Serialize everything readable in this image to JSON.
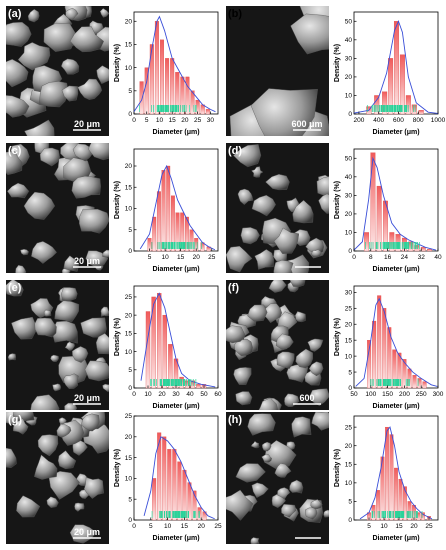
{
  "colors": {
    "bar_top": "#f05a5a",
    "bar_bottom": "#fde9e9",
    "bar_edge": "#d94040",
    "fit_line": "#3a4fd8",
    "rug": "#2bd39a",
    "sem_bg": "#161616",
    "particle": "#9a9a9a"
  },
  "panels": [
    {
      "label": "(a)",
      "scale_bar": "20 μm"
    },
    {
      "label": "(b)",
      "scale_bar": "600 μm"
    },
    {
      "label": "(c)",
      "scale_bar": "20 μm"
    },
    {
      "label": "(d)",
      "scale_bar": ""
    },
    {
      "label": "(e)",
      "scale_bar": "20 μm"
    },
    {
      "label": "(f)",
      "scale_bar": "600"
    },
    {
      "label": "(g)",
      "scale_bar": "20 μm"
    },
    {
      "label": "(h)",
      "scale_bar": ""
    }
  ],
  "chart_data": [
    {
      "type": "bar",
      "panel": "(a)",
      "xlabel": "Diameter (μm)",
      "ylabel": "Density (%)",
      "xlim": [
        0,
        33
      ],
      "ylim": [
        0,
        22
      ],
      "xticks": [
        0,
        5,
        10,
        15,
        20,
        25,
        30
      ],
      "yticks": [
        0,
        5,
        10,
        15,
        20
      ],
      "x": [
        3,
        5,
        7,
        9,
        11,
        13,
        15,
        17,
        19,
        21,
        23,
        25,
        27,
        29
      ],
      "values": [
        7,
        10,
        15,
        20,
        16,
        12,
        12,
        9,
        8,
        8,
        5,
        3,
        2,
        1
      ],
      "fit": [
        [
          0,
          0.5
        ],
        [
          3,
          3
        ],
        [
          5,
          7
        ],
        [
          7,
          14
        ],
        [
          9,
          20
        ],
        [
          10,
          21
        ],
        [
          12,
          18
        ],
        [
          15,
          12
        ],
        [
          18,
          9
        ],
        [
          21,
          6
        ],
        [
          24,
          4
        ],
        [
          27,
          2
        ],
        [
          30,
          1
        ],
        [
          32,
          0.5
        ]
      ]
    },
    {
      "type": "bar",
      "panel": "(b)",
      "xlabel": "Diameter (μm)",
      "ylabel": "Density (%)",
      "xlim": [
        150,
        1000
      ],
      "ylim": [
        0,
        55
      ],
      "xticks": [
        200,
        400,
        600,
        800,
        1000
      ],
      "yticks": [
        0,
        10,
        20,
        30,
        40,
        50
      ],
      "x": [
        300,
        380,
        460,
        520,
        580,
        640,
        700,
        760,
        830
      ],
      "values": [
        4,
        10,
        12,
        30,
        50,
        32,
        10,
        5,
        2
      ],
      "fit": [
        [
          150,
          0.5
        ],
        [
          300,
          2
        ],
        [
          400,
          9
        ],
        [
          480,
          22
        ],
        [
          560,
          45
        ],
        [
          600,
          50
        ],
        [
          640,
          44
        ],
        [
          700,
          20
        ],
        [
          780,
          6
        ],
        [
          900,
          1
        ],
        [
          1000,
          0.3
        ]
      ]
    },
    {
      "type": "bar",
      "panel": "(c)",
      "xlabel": "Diameter (μm)",
      "ylabel": "Density (%)",
      "xlim": [
        0,
        27
      ],
      "ylim": [
        0,
        24
      ],
      "xticks": [
        5,
        10,
        15,
        20,
        25
      ],
      "yticks": [
        0,
        5,
        10,
        15,
        20
      ],
      "x": [
        5,
        6.5,
        8,
        9.5,
        11,
        12.5,
        14,
        15.5,
        17,
        18.5,
        20,
        22,
        24
      ],
      "values": [
        3,
        8,
        14,
        19,
        20,
        13,
        9,
        9,
        8,
        5,
        3,
        2,
        1
      ],
      "fit": [
        [
          2,
          0.5
        ],
        [
          5,
          4
        ],
        [
          7,
          11
        ],
        [
          9,
          18
        ],
        [
          10.5,
          20
        ],
        [
          12,
          17
        ],
        [
          14,
          12
        ],
        [
          16,
          9
        ],
        [
          18,
          6
        ],
        [
          20,
          4
        ],
        [
          22,
          2
        ],
        [
          24,
          1
        ],
        [
          26,
          0.3
        ]
      ]
    },
    {
      "type": "bar",
      "panel": "(d)",
      "xlabel": "Diameter (μm)",
      "ylabel": "Density (%)",
      "xlim": [
        0,
        40
      ],
      "ylim": [
        0,
        55
      ],
      "xticks": [
        0,
        8,
        16,
        24,
        32,
        40
      ],
      "yticks": [
        0,
        10,
        20,
        30,
        40,
        50
      ],
      "x": [
        6,
        9,
        12,
        15,
        18,
        21,
        24,
        27,
        30,
        33,
        36
      ],
      "values": [
        10,
        53,
        35,
        27,
        10,
        9,
        7,
        5,
        3,
        2,
        1
      ],
      "fit": [
        [
          0,
          0.5
        ],
        [
          4,
          5
        ],
        [
          7,
          28
        ],
        [
          9,
          50
        ],
        [
          11,
          45
        ],
        [
          14,
          30
        ],
        [
          18,
          15
        ],
        [
          22,
          9
        ],
        [
          26,
          6
        ],
        [
          30,
          4
        ],
        [
          34,
          2
        ],
        [
          39,
          0.5
        ]
      ]
    },
    {
      "type": "bar",
      "panel": "(e)",
      "xlabel": "Diameter (μm)",
      "ylabel": "Density (%)",
      "xlim": [
        0,
        60
      ],
      "ylim": [
        0,
        28
      ],
      "xticks": [
        0,
        10,
        20,
        30,
        40,
        50,
        60
      ],
      "yticks": [
        0,
        5,
        10,
        15,
        20,
        25
      ],
      "x": [
        10,
        14,
        18,
        22,
        26,
        30,
        34,
        38,
        42,
        46,
        50
      ],
      "values": [
        21,
        25,
        26,
        20,
        12,
        8,
        3,
        2,
        2,
        1,
        1
      ],
      "fit": [
        [
          5,
          2
        ],
        [
          10,
          14
        ],
        [
          14,
          23
        ],
        [
          18,
          26
        ],
        [
          22,
          22
        ],
        [
          26,
          15
        ],
        [
          30,
          8
        ],
        [
          34,
          4
        ],
        [
          40,
          2
        ],
        [
          48,
          1
        ],
        [
          58,
          0.3
        ]
      ]
    },
    {
      "type": "bar",
      "panel": "(f)",
      "xlabel": "Diameter (μm)",
      "ylabel": "Density (%)",
      "xlim": [
        50,
        300
      ],
      "ylim": [
        0,
        32
      ],
      "xticks": [
        50,
        100,
        150,
        200,
        250,
        300
      ],
      "yticks": [
        0,
        5,
        10,
        15,
        20,
        25,
        30
      ],
      "x": [
        95,
        110,
        125,
        140,
        155,
        170,
        185,
        200,
        215,
        230,
        245,
        260
      ],
      "values": [
        15,
        21,
        29,
        25,
        19,
        12,
        11,
        9,
        6,
        4,
        3,
        2
      ],
      "fit": [
        [
          55,
          0.5
        ],
        [
          80,
          3
        ],
        [
          100,
          15
        ],
        [
          115,
          26
        ],
        [
          125,
          28
        ],
        [
          140,
          24
        ],
        [
          160,
          16
        ],
        [
          180,
          11
        ],
        [
          200,
          8
        ],
        [
          225,
          5
        ],
        [
          250,
          3
        ],
        [
          280,
          1
        ],
        [
          298,
          0.5
        ]
      ]
    },
    {
      "type": "bar",
      "panel": "(g)",
      "xlabel": "Diameter (μm)",
      "ylabel": "Density (%)",
      "xlim": [
        0,
        25
      ],
      "ylim": [
        0,
        25
      ],
      "xticks": [
        0,
        5,
        10,
        15,
        20,
        25
      ],
      "yticks": [
        0,
        5,
        10,
        15,
        20,
        25
      ],
      "x": [
        6,
        7.5,
        9,
        10.5,
        12,
        13.5,
        15,
        16.5,
        18,
        19.5,
        21
      ],
      "values": [
        10,
        21,
        20,
        17,
        17,
        14,
        12,
        9,
        7,
        3,
        2
      ],
      "fit": [
        [
          3,
          1
        ],
        [
          5,
          7
        ],
        [
          6.5,
          16
        ],
        [
          8,
          20
        ],
        [
          10,
          19
        ],
        [
          12,
          17
        ],
        [
          14,
          14
        ],
        [
          16,
          10
        ],
        [
          18,
          6
        ],
        [
          20,
          3
        ],
        [
          22,
          1
        ],
        [
          24,
          0.3
        ]
      ]
    },
    {
      "type": "bar",
      "panel": "(h)",
      "xlabel": "Diameter (μm)",
      "ylabel": "Density (%)",
      "xlim": [
        0,
        28
      ],
      "ylim": [
        0,
        28
      ],
      "xticks": [
        5,
        10,
        15,
        20,
        25
      ],
      "yticks": [
        0,
        5,
        10,
        15,
        20,
        25
      ],
      "x": [
        5,
        6.5,
        8,
        9.5,
        11,
        12.5,
        14,
        15.5,
        17,
        18.5,
        20,
        21.5,
        23,
        25
      ],
      "values": [
        2,
        4,
        8,
        17,
        25,
        23,
        14,
        11,
        9,
        5,
        4,
        2,
        2,
        1
      ],
      "fit": [
        [
          2,
          0.3
        ],
        [
          5,
          2
        ],
        [
          7,
          6
        ],
        [
          9,
          14
        ],
        [
          11,
          24
        ],
        [
          12,
          25
        ],
        [
          13.5,
          20
        ],
        [
          15,
          13
        ],
        [
          17,
          8
        ],
        [
          19,
          5
        ],
        [
          21,
          3
        ],
        [
          23,
          1.5
        ],
        [
          26,
          0.3
        ]
      ]
    }
  ]
}
